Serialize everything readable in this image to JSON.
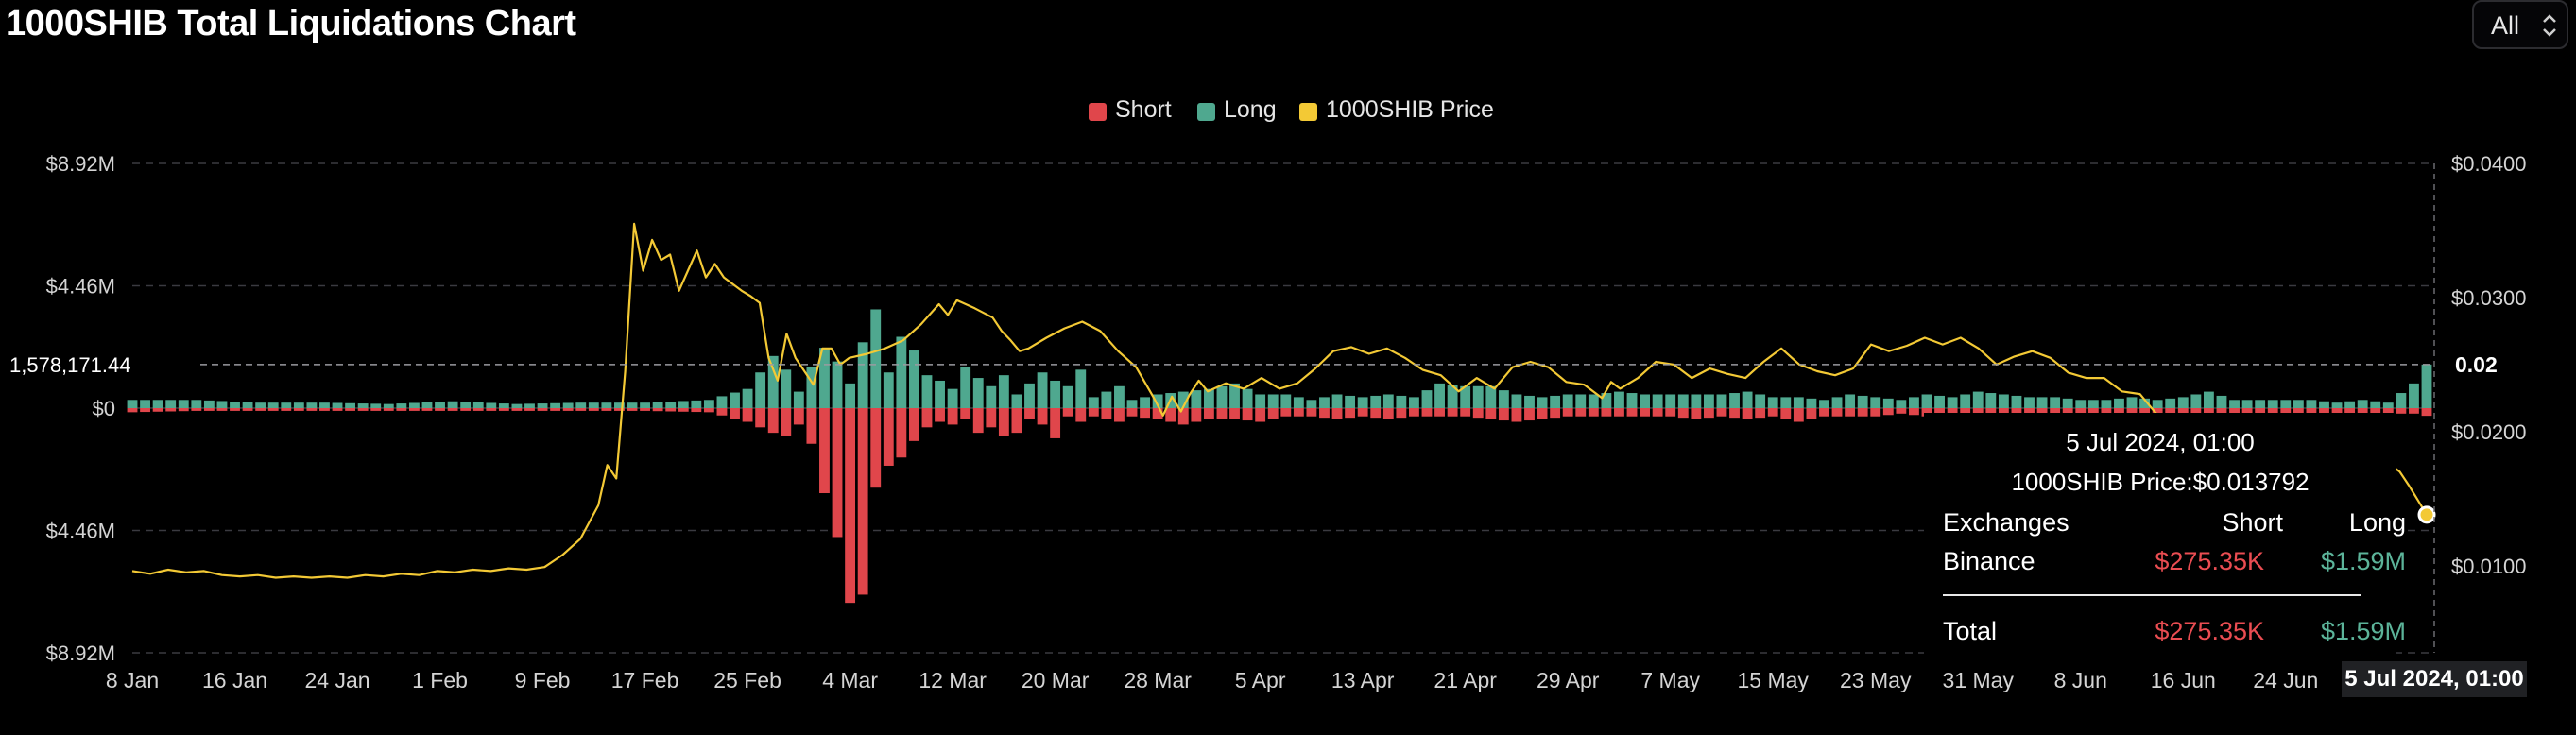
{
  "title": "1000SHIB Total Liquidations Chart",
  "range_select": {
    "value": "All",
    "icon": "chevron-updown-icon"
  },
  "colors": {
    "short": "#e0464b",
    "long": "#4fa88f",
    "price": "#f3c935",
    "grid": "#3a3a40",
    "axis_text": "#d4d4d4"
  },
  "legend": [
    {
      "label": "Short",
      "color": "#e0464b"
    },
    {
      "label": "Long",
      "color": "#4fa88f"
    },
    {
      "label": "1000SHIB Price",
      "color": "#f3c935"
    }
  ],
  "crosshair": {
    "y_label": "1,578,171.44",
    "y2_label": "0.02",
    "x_label": "5 Jul 2024, 01:00"
  },
  "tooltip": {
    "date": "5 Jul 2024, 01:00",
    "price_line": "1000SHIB Price:$0.013792",
    "headers": [
      "Exchanges",
      "Short",
      "Long"
    ],
    "rows": [
      {
        "exchange": "Binance",
        "short": "$275.35K",
        "long": "$1.59M"
      }
    ],
    "total": {
      "label": "Total",
      "short": "$275.35K",
      "long": "$1.59M"
    }
  },
  "chart_data": {
    "type": "bar",
    "title": "1000SHIB Total Liquidations Chart",
    "y_axis_left": {
      "labels": [
        "$8.92M",
        "$4.46M",
        "$0",
        "$4.46M",
        "$8.92M"
      ],
      "range": [
        -8.92,
        8.92
      ],
      "unit": "USD millions (long up, short down)"
    },
    "y_axis_right": {
      "labels": [
        "$0.0400",
        "$0.0300",
        "$0.0200",
        "$0.0100"
      ],
      "range": [
        0.0035,
        0.04
      ]
    },
    "x_labels": [
      "8 Jan",
      "16 Jan",
      "24 Jan",
      "1 Feb",
      "9 Feb",
      "17 Feb",
      "25 Feb",
      "4 Mar",
      "12 Mar",
      "20 Mar",
      "28 Mar",
      "5 Apr",
      "13 Apr",
      "21 Apr",
      "29 Apr",
      "7 May",
      "15 May",
      "23 May",
      "31 May",
      "8 Jun",
      "16 Jun",
      "24 Jun"
    ],
    "x_range_days": [
      0,
      179
    ],
    "grid": true,
    "legend_position": "top-center",
    "long_keypoints": [
      [
        0,
        0.3
      ],
      [
        5,
        0.3
      ],
      [
        10,
        0.2
      ],
      [
        15,
        0.2
      ],
      [
        20,
        0.15
      ],
      [
        25,
        0.25
      ],
      [
        30,
        0.15
      ],
      [
        35,
        0.2
      ],
      [
        40,
        0.2
      ],
      [
        45,
        0.3
      ],
      [
        48,
        0.7
      ],
      [
        50,
        1.9
      ],
      [
        51,
        1.4
      ],
      [
        52,
        0.6
      ],
      [
        53,
        1.5
      ],
      [
        54,
        2.2
      ],
      [
        55,
        1.7
      ],
      [
        56,
        0.9
      ],
      [
        57,
        2.4
      ],
      [
        58,
        3.6
      ],
      [
        59,
        1.3
      ],
      [
        60,
        2.6
      ],
      [
        61,
        2.1
      ],
      [
        62,
        1.2
      ],
      [
        63,
        1.0
      ],
      [
        64,
        0.7
      ],
      [
        65,
        1.5
      ],
      [
        66,
        1.1
      ],
      [
        67,
        0.8
      ],
      [
        68,
        1.2
      ],
      [
        69,
        0.5
      ],
      [
        70,
        0.9
      ],
      [
        71,
        1.3
      ],
      [
        72,
        1.0
      ],
      [
        73,
        0.8
      ],
      [
        74,
        1.4
      ],
      [
        75,
        0.4
      ],
      [
        76,
        0.6
      ],
      [
        77,
        0.8
      ],
      [
        78,
        0.3
      ],
      [
        80,
        0.5
      ],
      [
        82,
        0.6
      ],
      [
        84,
        0.7
      ],
      [
        86,
        0.9
      ],
      [
        88,
        0.5
      ],
      [
        90,
        0.5
      ],
      [
        92,
        0.3
      ],
      [
        94,
        0.5
      ],
      [
        96,
        0.4
      ],
      [
        98,
        0.5
      ],
      [
        100,
        0.4
      ],
      [
        102,
        0.9
      ],
      [
        104,
        0.8
      ],
      [
        106,
        0.8
      ],
      [
        108,
        0.5
      ],
      [
        110,
        0.4
      ],
      [
        112,
        0.5
      ],
      [
        114,
        0.5
      ],
      [
        116,
        0.6
      ],
      [
        118,
        0.5
      ],
      [
        120,
        0.5
      ],
      [
        122,
        0.5
      ],
      [
        124,
        0.5
      ],
      [
        126,
        0.6
      ],
      [
        128,
        0.4
      ],
      [
        130,
        0.4
      ],
      [
        132,
        0.3
      ],
      [
        134,
        0.5
      ],
      [
        136,
        0.4
      ],
      [
        138,
        0.3
      ],
      [
        140,
        0.5
      ],
      [
        142,
        0.4
      ],
      [
        144,
        0.6
      ],
      [
        146,
        0.5
      ],
      [
        148,
        0.4
      ],
      [
        150,
        0.4
      ],
      [
        152,
        0.3
      ],
      [
        154,
        0.3
      ],
      [
        156,
        0.4
      ],
      [
        158,
        0.3
      ],
      [
        160,
        0.4
      ],
      [
        162,
        0.6
      ],
      [
        164,
        0.3
      ],
      [
        166,
        0.3
      ],
      [
        168,
        0.3
      ],
      [
        170,
        0.3
      ],
      [
        172,
        0.2
      ],
      [
        174,
        0.3
      ],
      [
        176,
        0.2
      ],
      [
        178,
        0.9
      ],
      [
        179,
        1.59
      ]
    ],
    "short_keypoints": [
      [
        0,
        -0.15
      ],
      [
        5,
        -0.1
      ],
      [
        10,
        -0.1
      ],
      [
        15,
        -0.1
      ],
      [
        20,
        -0.1
      ],
      [
        25,
        -0.1
      ],
      [
        30,
        -0.1
      ],
      [
        35,
        -0.1
      ],
      [
        40,
        -0.1
      ],
      [
        45,
        -0.15
      ],
      [
        48,
        -0.5
      ],
      [
        50,
        -0.9
      ],
      [
        51,
        -1.0
      ],
      [
        52,
        -0.6
      ],
      [
        53,
        -1.3
      ],
      [
        54,
        -3.1
      ],
      [
        55,
        -4.7
      ],
      [
        56,
        -7.1
      ],
      [
        57,
        -6.8
      ],
      [
        58,
        -2.9
      ],
      [
        59,
        -2.1
      ],
      [
        60,
        -1.8
      ],
      [
        61,
        -1.2
      ],
      [
        62,
        -0.7
      ],
      [
        63,
        -0.5
      ],
      [
        64,
        -0.6
      ],
      [
        65,
        -0.4
      ],
      [
        66,
        -0.9
      ],
      [
        67,
        -0.7
      ],
      [
        68,
        -1.0
      ],
      [
        69,
        -0.9
      ],
      [
        70,
        -0.4
      ],
      [
        71,
        -0.6
      ],
      [
        72,
        -1.1
      ],
      [
        73,
        -0.3
      ],
      [
        74,
        -0.5
      ],
      [
        75,
        -0.3
      ],
      [
        76,
        -0.4
      ],
      [
        77,
        -0.5
      ],
      [
        78,
        -0.3
      ],
      [
        80,
        -0.4
      ],
      [
        82,
        -0.6
      ],
      [
        84,
        -0.4
      ],
      [
        86,
        -0.4
      ],
      [
        88,
        -0.5
      ],
      [
        90,
        -0.3
      ],
      [
        92,
        -0.3
      ],
      [
        94,
        -0.4
      ],
      [
        96,
        -0.3
      ],
      [
        98,
        -0.4
      ],
      [
        100,
        -0.3
      ],
      [
        102,
        -0.3
      ],
      [
        104,
        -0.3
      ],
      [
        106,
        -0.4
      ],
      [
        108,
        -0.5
      ],
      [
        110,
        -0.4
      ],
      [
        112,
        -0.3
      ],
      [
        114,
        -0.3
      ],
      [
        116,
        -0.3
      ],
      [
        118,
        -0.3
      ],
      [
        120,
        -0.3
      ],
      [
        122,
        -0.4
      ],
      [
        124,
        -0.3
      ],
      [
        126,
        -0.4
      ],
      [
        128,
        -0.3
      ],
      [
        130,
        -0.5
      ],
      [
        132,
        -0.3
      ],
      [
        134,
        -0.3
      ],
      [
        136,
        -0.3
      ],
      [
        138,
        -0.2
      ],
      [
        140,
        -0.3
      ],
      [
        142,
        -0.3
      ],
      [
        144,
        -0.3
      ],
      [
        146,
        -0.2
      ],
      [
        148,
        -0.3
      ],
      [
        150,
        -0.4
      ],
      [
        152,
        -0.3
      ],
      [
        154,
        -0.2
      ],
      [
        156,
        -0.2
      ],
      [
        158,
        -0.3
      ],
      [
        160,
        -0.2
      ],
      [
        162,
        -0.2
      ],
      [
        164,
        -0.3
      ],
      [
        166,
        -0.2
      ],
      [
        168,
        -0.2
      ],
      [
        170,
        -0.2
      ],
      [
        172,
        -0.2
      ],
      [
        174,
        -0.2
      ],
      [
        176,
        -0.2
      ],
      [
        178,
        -0.2
      ],
      [
        179,
        -0.28
      ]
    ],
    "price_series": [
      [
        0,
        0.0096
      ],
      [
        2,
        0.0094
      ],
      [
        4,
        0.0097
      ],
      [
        6,
        0.0095
      ],
      [
        8,
        0.0096
      ],
      [
        10,
        0.0093
      ],
      [
        12,
        0.0092
      ],
      [
        14,
        0.0093
      ],
      [
        16,
        0.0091
      ],
      [
        18,
        0.0092
      ],
      [
        20,
        0.0091
      ],
      [
        22,
        0.0092
      ],
      [
        24,
        0.0091
      ],
      [
        26,
        0.0093
      ],
      [
        28,
        0.0092
      ],
      [
        30,
        0.0094
      ],
      [
        32,
        0.0093
      ],
      [
        34,
        0.0096
      ],
      [
        36,
        0.0095
      ],
      [
        38,
        0.0097
      ],
      [
        40,
        0.0096
      ],
      [
        42,
        0.0098
      ],
      [
        44,
        0.0097
      ],
      [
        46,
        0.0099
      ],
      [
        48,
        0.0108
      ],
      [
        50,
        0.012
      ],
      [
        52,
        0.0145
      ],
      [
        53,
        0.0175
      ],
      [
        54,
        0.0165
      ],
      [
        55,
        0.0245
      ],
      [
        56,
        0.0355
      ],
      [
        57,
        0.032
      ],
      [
        58,
        0.0343
      ],
      [
        59,
        0.0328
      ],
      [
        60,
        0.0332
      ],
      [
        61,
        0.0305
      ],
      [
        62,
        0.032
      ],
      [
        63,
        0.0335
      ],
      [
        64,
        0.0315
      ],
      [
        65,
        0.0325
      ],
      [
        66,
        0.0315
      ],
      [
        67,
        0.031
      ],
      [
        68,
        0.0305
      ],
      [
        69,
        0.0301
      ],
      [
        70,
        0.0296
      ],
      [
        71,
        0.0255
      ],
      [
        72,
        0.0238
      ],
      [
        73,
        0.0273
      ],
      [
        74,
        0.0255
      ],
      [
        75,
        0.0245
      ],
      [
        76,
        0.0235
      ],
      [
        77,
        0.0262
      ],
      [
        78,
        0.0262
      ],
      [
        79,
        0.025
      ],
      [
        80,
        0.0255
      ],
      [
        82,
        0.0258
      ],
      [
        84,
        0.0262
      ],
      [
        86,
        0.0268
      ],
      [
        88,
        0.028
      ],
      [
        90,
        0.0295
      ],
      [
        91,
        0.0287
      ],
      [
        92,
        0.0298
      ],
      [
        94,
        0.0292
      ],
      [
        96,
        0.0285
      ],
      [
        97,
        0.0275
      ],
      [
        98,
        0.0268
      ],
      [
        99,
        0.026
      ],
      [
        100,
        0.0262
      ],
      [
        102,
        0.027
      ],
      [
        104,
        0.0277
      ],
      [
        106,
        0.0282
      ],
      [
        108,
        0.0275
      ],
      [
        110,
        0.026
      ],
      [
        112,
        0.0248
      ],
      [
        114,
        0.0225
      ],
      [
        115,
        0.0212
      ],
      [
        116,
        0.0226
      ],
      [
        117,
        0.0215
      ],
      [
        118,
        0.0228
      ],
      [
        119,
        0.0238
      ],
      [
        120,
        0.023
      ],
      [
        122,
        0.0236
      ],
      [
        124,
        0.0232
      ],
      [
        126,
        0.024
      ],
      [
        128,
        0.0232
      ],
      [
        130,
        0.0236
      ],
      [
        132,
        0.0247
      ],
      [
        134,
        0.026
      ],
      [
        136,
        0.0263
      ],
      [
        138,
        0.0258
      ],
      [
        140,
        0.0262
      ],
      [
        142,
        0.0255
      ],
      [
        144,
        0.0246
      ],
      [
        146,
        0.0242
      ],
      [
        148,
        0.023
      ],
      [
        150,
        0.024
      ],
      [
        152,
        0.0232
      ],
      [
        154,
        0.0248
      ],
      [
        156,
        0.0252
      ],
      [
        158,
        0.0248
      ],
      [
        160,
        0.0237
      ],
      [
        162,
        0.0235
      ],
      [
        164,
        0.0225
      ],
      [
        165,
        0.0237
      ],
      [
        166,
        0.0232
      ],
      [
        168,
        0.024
      ],
      [
        170,
        0.0252
      ],
      [
        172,
        0.025
      ],
      [
        174,
        0.024
      ],
      [
        176,
        0.0247
      ],
      [
        178,
        0.0243
      ],
      [
        180,
        0.024
      ],
      [
        182,
        0.0252
      ],
      [
        184,
        0.0262
      ],
      [
        186,
        0.025
      ],
      [
        188,
        0.0245
      ],
      [
        190,
        0.0242
      ],
      [
        192,
        0.0247
      ],
      [
        194,
        0.0265
      ],
      [
        196,
        0.026
      ],
      [
        198,
        0.0264
      ],
      [
        200,
        0.027
      ],
      [
        202,
        0.0265
      ],
      [
        204,
        0.027
      ],
      [
        206,
        0.0262
      ],
      [
        208,
        0.025
      ],
      [
        210,
        0.0256
      ],
      [
        212,
        0.026
      ],
      [
        214,
        0.0255
      ],
      [
        216,
        0.0244
      ],
      [
        218,
        0.024
      ],
      [
        220,
        0.024
      ],
      [
        222,
        0.023
      ],
      [
        224,
        0.0228
      ],
      [
        226,
        0.0212
      ],
      [
        228,
        0.0204
      ],
      [
        230,
        0.021
      ],
      [
        232,
        0.0205
      ],
      [
        234,
        0.0196
      ],
      [
        236,
        0.02
      ],
      [
        238,
        0.019
      ],
      [
        240,
        0.0176
      ],
      [
        242,
        0.0173
      ],
      [
        244,
        0.0172
      ],
      [
        246,
        0.0175
      ],
      [
        248,
        0.0178
      ],
      [
        250,
        0.0176
      ],
      [
        252,
        0.0175
      ],
      [
        253,
        0.017
      ],
      [
        254,
        0.016
      ],
      [
        255,
        0.0149
      ],
      [
        256,
        0.0138
      ]
    ],
    "price_series_x_scale": "index over 256 steps spanning the x range",
    "last_point": {
      "date": "5 Jul 2024, 01:00",
      "price": 0.013792,
      "short": 275350,
      "long": 1590000
    }
  }
}
